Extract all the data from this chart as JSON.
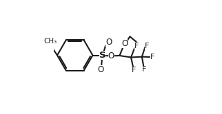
{
  "bg_color": "#ffffff",
  "line_color": "#1a1a1a",
  "line_width": 1.5,
  "font_size_atom": 8.5,
  "xlim": [
    0.0,
    1.0
  ],
  "ylim": [
    0.0,
    1.0
  ]
}
